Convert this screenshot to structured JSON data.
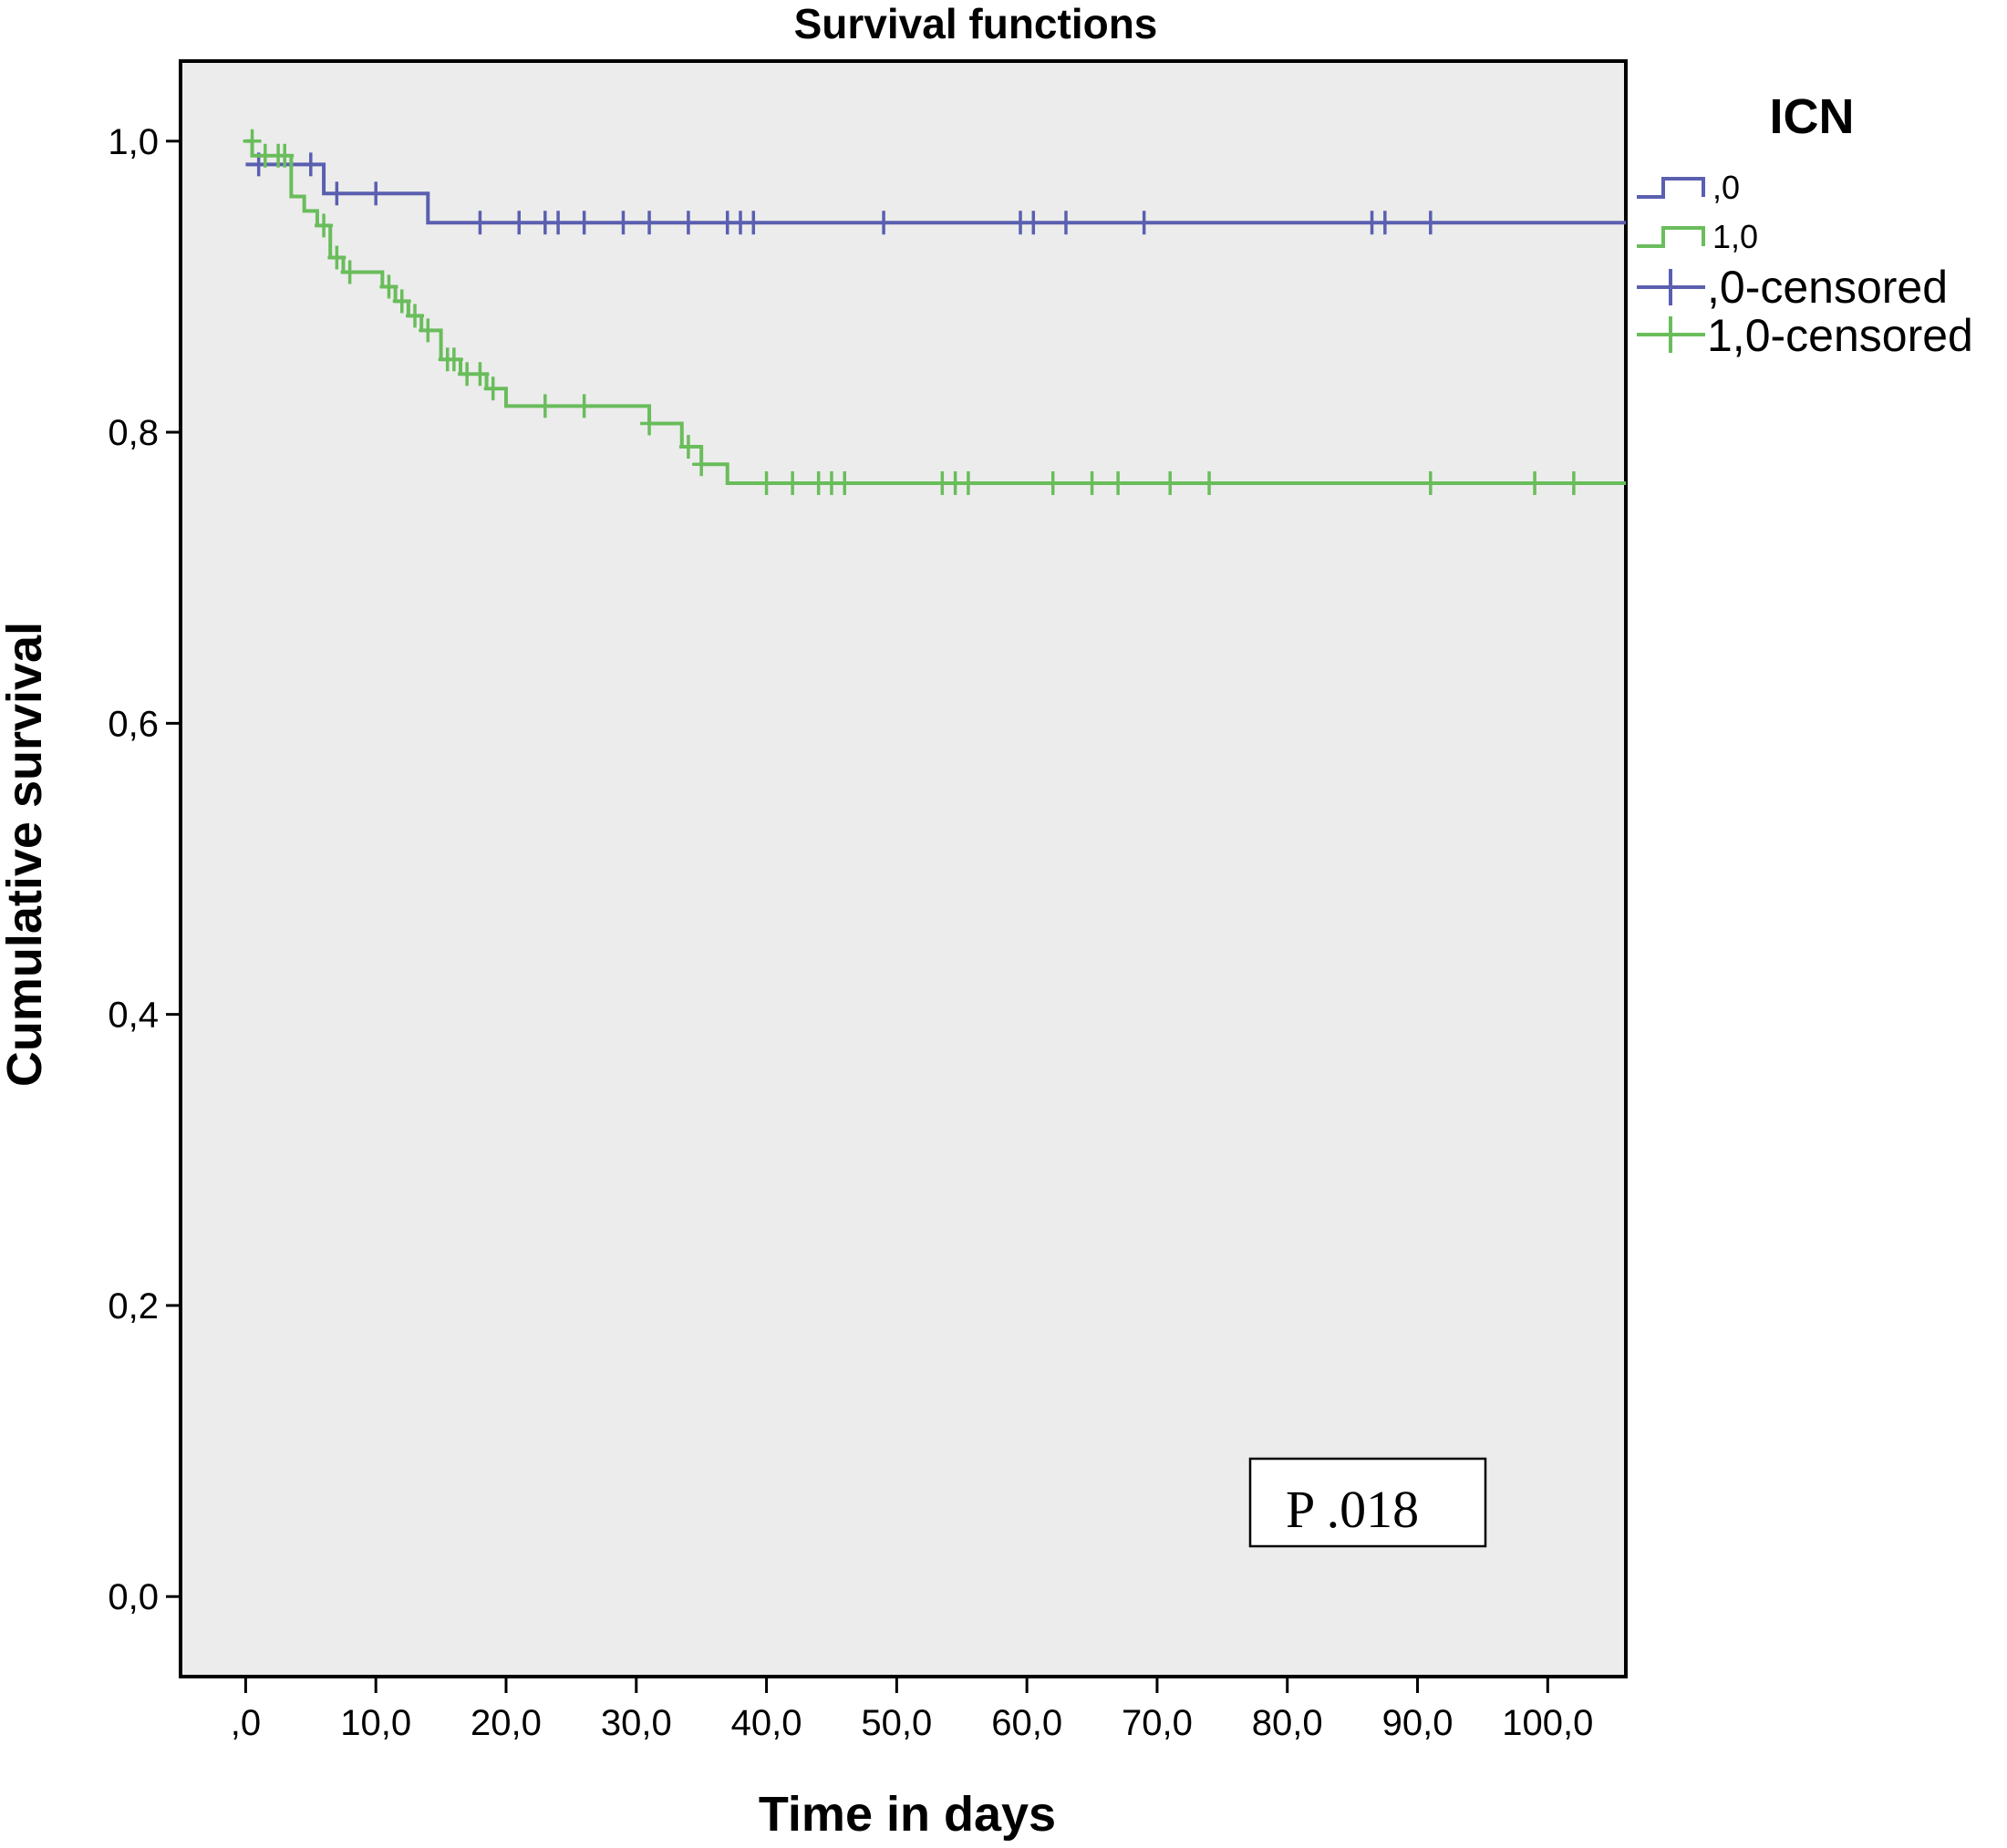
{
  "chart_data": {
    "type": "line",
    "title": "Survival functions",
    "xlabel": "Time in days",
    "ylabel": "Cumulative survival",
    "xlim": [
      -5,
      106
    ],
    "ylim": [
      -0.055,
      1.055
    ],
    "x_ticks": [
      0,
      10,
      20,
      30,
      40,
      50,
      60,
      70,
      80,
      90,
      100
    ],
    "x_tick_labels": [
      ",0",
      "10,0",
      "20,0",
      "30,0",
      "40,0",
      "50,0",
      "60,0",
      "70,0",
      "80,0",
      "90,0",
      "100,0"
    ],
    "y_ticks": [
      0,
      0.2,
      0.4,
      0.6,
      0.8,
      1.0
    ],
    "y_tick_labels": [
      "0,0",
      "0,2",
      "0,4",
      "0,6",
      "0,8",
      "1,0"
    ],
    "grid": false,
    "legend_title": "ICN",
    "legend_position": "outside-right-top",
    "legend": [
      ",0",
      "1,0",
      ",0-censored",
      "1,0-censored"
    ],
    "annotation": "P .018",
    "colors": {
      "group0": "#5a5fb0",
      "group1": "#69bd5b",
      "plot_bg": "#ececec"
    },
    "series": [
      {
        "name": ",0",
        "step_x": [
          0,
          6,
          14,
          106
        ],
        "step_y": [
          0.984,
          0.964,
          0.944,
          0.944
        ],
        "censored_x": [
          1,
          5,
          7,
          10,
          18,
          21,
          23,
          24,
          26,
          29,
          31,
          34,
          37,
          38,
          39,
          49,
          59.5,
          60.5,
          63,
          69,
          86.5,
          87.5,
          91
        ],
        "censored_y": [
          0.984,
          0.984,
          0.964,
          0.964,
          0.944,
          0.944,
          0.944,
          0.944,
          0.944,
          0.944,
          0.944,
          0.944,
          0.944,
          0.944,
          0.944,
          0.944,
          0.944,
          0.944,
          0.944,
          0.944,
          0.944,
          0.944,
          0.944
        ]
      },
      {
        "name": "1,0",
        "step_x": [
          0,
          0.5,
          3.5,
          4.5,
          5.5,
          6.5,
          7.5,
          10.5,
          11.5,
          12.5,
          13.5,
          15,
          16.5,
          18.5,
          20,
          31,
          33.5,
          35,
          37,
          106
        ],
        "step_y": [
          1.0,
          0.99,
          0.962,
          0.952,
          0.942,
          0.92,
          0.91,
          0.9,
          0.89,
          0.88,
          0.87,
          0.85,
          0.84,
          0.83,
          0.818,
          0.806,
          0.79,
          0.778,
          0.765,
          0.765
        ],
        "censored_x": [
          0.5,
          1.5,
          2.5,
          3,
          6,
          7,
          8,
          11,
          12,
          13,
          14,
          15.5,
          16,
          17,
          18,
          19,
          23,
          26,
          31,
          34,
          35,
          40,
          42,
          44,
          45,
          46,
          53.5,
          54.5,
          55.5,
          62,
          65,
          67,
          71,
          74,
          91,
          99,
          102
        ],
        "censored_y": [
          1.0,
          0.99,
          0.99,
          0.99,
          0.942,
          0.92,
          0.91,
          0.9,
          0.89,
          0.88,
          0.87,
          0.85,
          0.85,
          0.84,
          0.84,
          0.83,
          0.818,
          0.818,
          0.806,
          0.79,
          0.778,
          0.765,
          0.765,
          0.765,
          0.765,
          0.765,
          0.765,
          0.765,
          0.765,
          0.765,
          0.765,
          0.765,
          0.765,
          0.765,
          0.765,
          0.765,
          0.765
        ]
      }
    ]
  }
}
